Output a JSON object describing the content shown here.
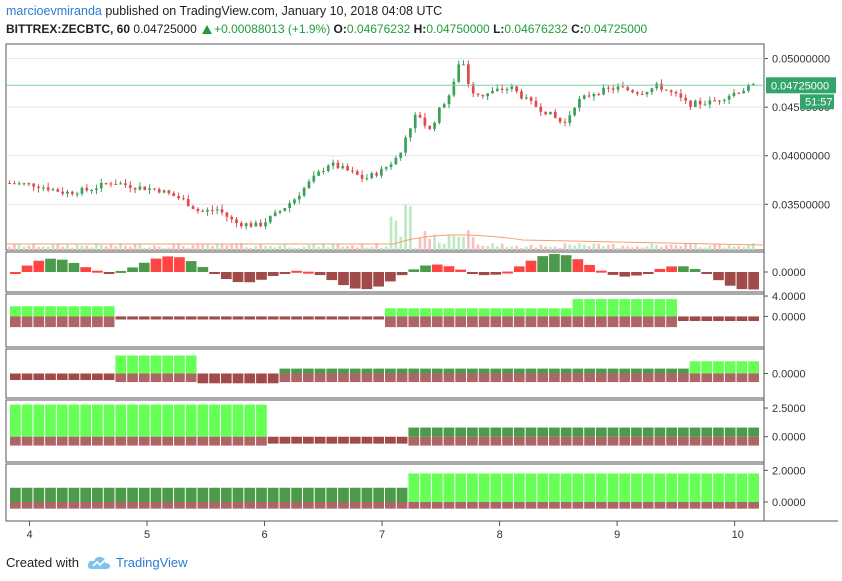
{
  "header": {
    "author": "marcioevmiranda",
    "published_text": "published on TradingView.com, January 10, 2018 04:08 UTC",
    "symbol": "BITTREX:ZECBTC, 60",
    "last": "0.04725000",
    "change": "+0.00088013 (+1.9%)",
    "o_label": "O:",
    "o_value": "0.04676232",
    "h_label": "H:",
    "h_value": "0.04750000",
    "l_label": "L:",
    "l_value": "0.04676232",
    "c_label": "C:",
    "c_value": "0.04725000"
  },
  "footer": {
    "created_with": "Created with",
    "brand": "TradingView"
  },
  "colors": {
    "up": "#3aa05a",
    "down": "#e04a4a",
    "bright_green": "#66ff55",
    "dark_green": "#4c9a4c",
    "dark_red": "#a04a4a",
    "bright_red": "#ff4444",
    "price_tag": "#33a56a",
    "grid": "#e6e6e6"
  },
  "chart_data": {
    "type": "candlestick",
    "symbol": "BITTREX:ZECBTC",
    "interval": "60",
    "x_tick_labels": [
      "4",
      "5",
      "6",
      "7",
      "8",
      "9",
      "10"
    ],
    "x_range": [
      3.8,
      10.25
    ],
    "price": {
      "ylim": [
        0.0303,
        0.0515
      ],
      "y_tick_labels": [
        "0.05000000",
        "0.04500000",
        "0.04000000",
        "0.03500000"
      ],
      "y_tick_values": [
        0.05,
        0.045,
        0.04,
        0.035
      ],
      "last_price_label": "0.04725000",
      "countdown_label": "51:57",
      "anchors_day_close": [
        [
          3.8,
          0.0372
        ],
        [
          4.05,
          0.037
        ],
        [
          4.3,
          0.0362
        ],
        [
          4.5,
          0.0365
        ],
        [
          4.7,
          0.0373
        ],
        [
          4.9,
          0.0368
        ],
        [
          5.1,
          0.0365
        ],
        [
          5.3,
          0.0355
        ],
        [
          5.45,
          0.0342
        ],
        [
          5.6,
          0.0345
        ],
        [
          5.75,
          0.0331
        ],
        [
          5.95,
          0.0328
        ],
        [
          6.1,
          0.034
        ],
        [
          6.25,
          0.0355
        ],
        [
          6.4,
          0.0375
        ],
        [
          6.55,
          0.0392
        ],
        [
          6.7,
          0.0385
        ],
        [
          6.85,
          0.0376
        ],
        [
          7.0,
          0.0385
        ],
        [
          7.15,
          0.04
        ],
        [
          7.2,
          0.042
        ],
        [
          7.3,
          0.0445
        ],
        [
          7.4,
          0.0425
        ],
        [
          7.5,
          0.045
        ],
        [
          7.6,
          0.0468
        ],
        [
          7.67,
          0.0505
        ],
        [
          7.75,
          0.0468
        ],
        [
          7.85,
          0.0462
        ],
        [
          8.0,
          0.0468
        ],
        [
          8.1,
          0.047
        ],
        [
          8.25,
          0.0455
        ],
        [
          8.4,
          0.0445
        ],
        [
          8.55,
          0.0432
        ],
        [
          8.65,
          0.0455
        ],
        [
          8.8,
          0.0465
        ],
        [
          9.0,
          0.047
        ],
        [
          9.2,
          0.0465
        ],
        [
          9.35,
          0.0472
        ],
        [
          9.5,
          0.0462
        ],
        [
          9.6,
          0.0453
        ],
        [
          9.8,
          0.0455
        ],
        [
          10.0,
          0.0465
        ],
        [
          10.18,
          0.04725
        ]
      ]
    },
    "indicators": [
      {
        "type": "histogram",
        "y_tick_labels": [
          "0.0000"
        ],
        "y_tick_values": [
          0
        ],
        "ylim": [
          -1,
          1
        ]
      },
      {
        "type": "histogram",
        "y_tick_labels": [
          "4.0000",
          "0.0000"
        ],
        "y_tick_values": [
          4,
          0
        ],
        "ylim": [
          -6,
          4.4
        ]
      },
      {
        "type": "histogram",
        "y_tick_labels": [
          "0.0000"
        ],
        "y_tick_values": [
          0
        ],
        "ylim": [
          -3,
          3
        ]
      },
      {
        "type": "histogram",
        "y_tick_labels": [
          "2.5000",
          "0.0000"
        ],
        "y_tick_values": [
          2.5,
          0
        ],
        "ylim": [
          -2.2,
          3.2
        ]
      },
      {
        "type": "histogram",
        "y_tick_labels": [
          "2.0000",
          "0.0000"
        ],
        "y_tick_values": [
          2,
          0
        ],
        "ylim": [
          -1.2,
          2.4
        ]
      }
    ]
  }
}
